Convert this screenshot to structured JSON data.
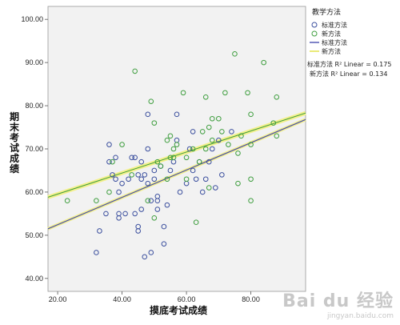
{
  "chart_data": {
    "type": "scatter",
    "xlabel": "摸底考试成绩",
    "ylabel": "期末考试成绩",
    "xlim": [
      17,
      97
    ],
    "ylim": [
      37,
      103
    ],
    "xticks": [
      "20.00",
      "40.00",
      "60.00",
      "80.00"
    ],
    "yticks": [
      "40.00",
      "50.00",
      "60.00",
      "70.00",
      "80.00",
      "90.00",
      "100.00"
    ],
    "grid": false,
    "legend_title": "教学方法",
    "series": [
      {
        "name": "标准方法",
        "color": "#3b4f9e",
        "marker": "circle",
        "points": [
          [
            32,
            46
          ],
          [
            33,
            51
          ],
          [
            35,
            55
          ],
          [
            36,
            71
          ],
          [
            36,
            67
          ],
          [
            37,
            64
          ],
          [
            38,
            63
          ],
          [
            38,
            68
          ],
          [
            39,
            55
          ],
          [
            39,
            54
          ],
          [
            39,
            60
          ],
          [
            40,
            62
          ],
          [
            41,
            55
          ],
          [
            42,
            63
          ],
          [
            43,
            68
          ],
          [
            44,
            68
          ],
          [
            44,
            55
          ],
          [
            45,
            52
          ],
          [
            45,
            51
          ],
          [
            45,
            64
          ],
          [
            46,
            63
          ],
          [
            46,
            56
          ],
          [
            46,
            67
          ],
          [
            47,
            45
          ],
          [
            47,
            64
          ],
          [
            48,
            62
          ],
          [
            48,
            70
          ],
          [
            48,
            78
          ],
          [
            49,
            46
          ],
          [
            49,
            58
          ],
          [
            50,
            63
          ],
          [
            50,
            65
          ],
          [
            51,
            56
          ],
          [
            51,
            58
          ],
          [
            51,
            59
          ],
          [
            52,
            66
          ],
          [
            53,
            48
          ],
          [
            53,
            52
          ],
          [
            54,
            57
          ],
          [
            55,
            65
          ],
          [
            56,
            67
          ],
          [
            57,
            78
          ],
          [
            57,
            72
          ],
          [
            58,
            60
          ],
          [
            60,
            62
          ],
          [
            61,
            70
          ],
          [
            62,
            74
          ],
          [
            62,
            65
          ],
          [
            63,
            63
          ],
          [
            64,
            67
          ],
          [
            65,
            60
          ],
          [
            66,
            63
          ],
          [
            67,
            67
          ],
          [
            68,
            70
          ],
          [
            69,
            61
          ],
          [
            70,
            72
          ],
          [
            71,
            64
          ],
          [
            74,
            74
          ]
        ]
      },
      {
        "name": "新方法",
        "color": "#3f9e3f",
        "marker": "circle",
        "points": [
          [
            23,
            58
          ],
          [
            32,
            58
          ],
          [
            36,
            60
          ],
          [
            37,
            67
          ],
          [
            40,
            71
          ],
          [
            43,
            64
          ],
          [
            44,
            88
          ],
          [
            48,
            58
          ],
          [
            49,
            81
          ],
          [
            50,
            54
          ],
          [
            50,
            76
          ],
          [
            51,
            67
          ],
          [
            52,
            66
          ],
          [
            54,
            72
          ],
          [
            54,
            63
          ],
          [
            55,
            73
          ],
          [
            55,
            68
          ],
          [
            56,
            68
          ],
          [
            56,
            70
          ],
          [
            57,
            71
          ],
          [
            59,
            83
          ],
          [
            60,
            63
          ],
          [
            60,
            68
          ],
          [
            62,
            70
          ],
          [
            63,
            53
          ],
          [
            64,
            67
          ],
          [
            65,
            74
          ],
          [
            66,
            82
          ],
          [
            66,
            70
          ],
          [
            67,
            75
          ],
          [
            67,
            61
          ],
          [
            68,
            72
          ],
          [
            68,
            77
          ],
          [
            70,
            77
          ],
          [
            71,
            74
          ],
          [
            72,
            83
          ],
          [
            73,
            71
          ],
          [
            75,
            92
          ],
          [
            76,
            69
          ],
          [
            76,
            62
          ],
          [
            77,
            73
          ],
          [
            79,
            83
          ],
          [
            80,
            78
          ],
          [
            80,
            71
          ],
          [
            80,
            63
          ],
          [
            80,
            58
          ],
          [
            84,
            90
          ],
          [
            87,
            76
          ],
          [
            88,
            82
          ],
          [
            88,
            73
          ]
        ]
      }
    ],
    "fit_lines": [
      {
        "name": "标准方法",
        "color": "#4a4fb0",
        "x": [
          17,
          97
        ],
        "y": [
          51.5,
          76.8
        ],
        "r2_label": "标准方法 R² Linear = 0.175"
      },
      {
        "name": "新方法",
        "color": "#e8e86a",
        "x": [
          17,
          97
        ],
        "y": [
          58.8,
          78.3
        ],
        "r2_label": "新方法 R² Linear = 0.134"
      }
    ]
  },
  "watermark": {
    "main": "Bai du 经验",
    "url": "jingyan.baidu.com"
  }
}
